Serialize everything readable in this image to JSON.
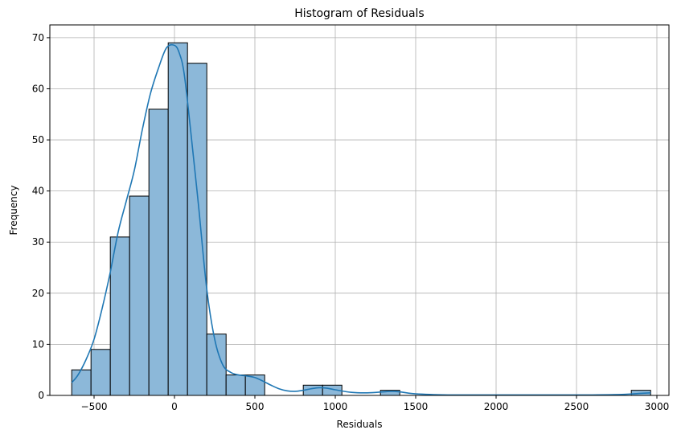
{
  "chart_data": {
    "type": "bar",
    "title": "Histogram of Residuals",
    "xlabel": "Residuals",
    "ylabel": "Frequency",
    "xlim": [
      -775,
      3075
    ],
    "ylim": [
      0,
      72.5
    ],
    "grid": true,
    "xticks": [
      -500,
      0,
      500,
      1000,
      1500,
      2000,
      2500,
      3000
    ],
    "xtick_labels": [
      "−500",
      "0",
      "500",
      "1000",
      "1500",
      "2000",
      "2500",
      "3000"
    ],
    "yticks": [
      0,
      10,
      20,
      30,
      40,
      50,
      60,
      70
    ],
    "ytick_labels": [
      "0",
      "10",
      "20",
      "30",
      "40",
      "50",
      "60",
      "70"
    ],
    "bins": [
      {
        "x0": -639,
        "x1": -519,
        "count": 5
      },
      {
        "x0": -519,
        "x1": -399,
        "count": 9
      },
      {
        "x0": -399,
        "x1": -279,
        "count": 31
      },
      {
        "x0": -279,
        "x1": -159,
        "count": 39
      },
      {
        "x0": -159,
        "x1": -39,
        "count": 56
      },
      {
        "x0": -39,
        "x1": 81,
        "count": 69
      },
      {
        "x0": 81,
        "x1": 201,
        "count": 65
      },
      {
        "x0": 201,
        "x1": 321,
        "count": 12
      },
      {
        "x0": 321,
        "x1": 441,
        "count": 4
      },
      {
        "x0": 441,
        "x1": 561,
        "count": 4
      },
      {
        "x0": 801,
        "x1": 921,
        "count": 2
      },
      {
        "x0": 921,
        "x1": 1041,
        "count": 2
      },
      {
        "x0": 1281,
        "x1": 1401,
        "count": 1
      },
      {
        "x0": 2841,
        "x1": 2961,
        "count": 1
      }
    ],
    "kde": {
      "x": [
        -639,
        -600,
        -550,
        -500,
        -450,
        -400,
        -350,
        -300,
        -250,
        -200,
        -150,
        -100,
        -50,
        0,
        30,
        60,
        100,
        150,
        200,
        250,
        300,
        350,
        400,
        450,
        500,
        550,
        600,
        650,
        700,
        750,
        800,
        850,
        900,
        950,
        1000,
        1100,
        1200,
        1300,
        1350,
        1400,
        1500,
        1700,
        2000,
        2300,
        2600,
        2800,
        2900,
        2961
      ],
      "y": [
        2.5,
        4,
        7,
        11,
        17,
        24,
        32,
        38,
        44,
        52,
        59,
        64,
        68,
        68.5,
        67,
        63,
        52,
        37,
        21,
        11,
        6,
        4.5,
        4,
        3.8,
        3.5,
        2.8,
        2,
        1.3,
        0.9,
        0.8,
        1,
        1.3,
        1.5,
        1.4,
        1.1,
        0.6,
        0.5,
        0.7,
        0.8,
        0.7,
        0.3,
        0.1,
        0.1,
        0.1,
        0.1,
        0.2,
        0.4,
        0.5
      ]
    },
    "colors": {
      "bar_fill": "#8cb8d9",
      "bar_edge": "#000000",
      "kde_line": "#1f77b4",
      "grid": "#b0b0b0"
    }
  }
}
